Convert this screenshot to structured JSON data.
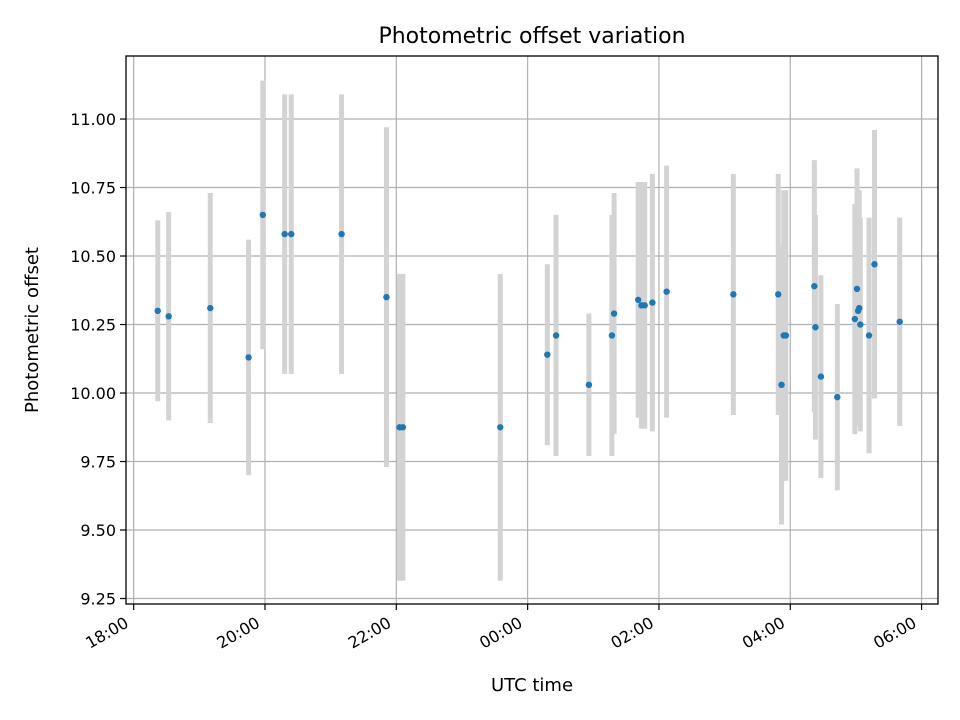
{
  "chart_data": {
    "type": "scatter",
    "title": "Photometric offset variation",
    "xlabel": "UTC time",
    "ylabel": "Photometric offset",
    "grid": true,
    "xlim": [
      "2000-01-01T17:53",
      "2000-01-02T06:15"
    ],
    "ylim": [
      9.23,
      11.23
    ],
    "x_ticks": [
      {
        "t": "2000-01-01T18:00",
        "label": "18:00"
      },
      {
        "t": "2000-01-01T20:00",
        "label": "20:00"
      },
      {
        "t": "2000-01-01T22:00",
        "label": "22:00"
      },
      {
        "t": "2000-01-02T00:00",
        "label": "00:00"
      },
      {
        "t": "2000-01-02T02:00",
        "label": "02:00"
      },
      {
        "t": "2000-01-02T04:00",
        "label": "04:00"
      },
      {
        "t": "2000-01-02T06:00",
        "label": "06:00"
      }
    ],
    "y_ticks": [
      {
        "v": 9.25,
        "label": "9.25"
      },
      {
        "v": 9.5,
        "label": "9.50"
      },
      {
        "v": 9.75,
        "label": "9.75"
      },
      {
        "v": 10.0,
        "label": "10.00"
      },
      {
        "v": 10.25,
        "label": "10.25"
      },
      {
        "v": 10.5,
        "label": "10.50"
      },
      {
        "v": 10.75,
        "label": "10.75"
      },
      {
        "v": 11.0,
        "label": "11.00"
      }
    ],
    "colors": {
      "point": "#1f77b4",
      "errorbar": "#d3d3d3",
      "grid": "#b0b0b0"
    },
    "points": [
      {
        "t": "2000-01-01T18:22",
        "y": 10.3,
        "err": 0.33
      },
      {
        "t": "2000-01-01T18:32",
        "y": 10.28,
        "err": 0.38
      },
      {
        "t": "2000-01-01T19:10",
        "y": 10.31,
        "err": 0.42
      },
      {
        "t": "2000-01-01T19:45",
        "y": 10.13,
        "err": 0.43
      },
      {
        "t": "2000-01-01T19:58",
        "y": 10.65,
        "err": 0.49
      },
      {
        "t": "2000-01-01T20:18",
        "y": 10.58,
        "err": 0.51
      },
      {
        "t": "2000-01-01T20:24",
        "y": 10.58,
        "err": 0.51
      },
      {
        "t": "2000-01-01T21:10",
        "y": 10.58,
        "err": 0.51
      },
      {
        "t": "2000-01-01T21:51",
        "y": 10.35,
        "err": 0.62
      },
      {
        "t": "2000-01-01T22:03",
        "y": 9.875,
        "err": 0.56
      },
      {
        "t": "2000-01-01T22:06",
        "y": 9.875,
        "err": 0.56
      },
      {
        "t": "2000-01-01T23:35",
        "y": 9.875,
        "err": 0.56
      },
      {
        "t": "2000-01-02T00:18",
        "y": 10.14,
        "err": 0.33
      },
      {
        "t": "2000-01-02T00:26",
        "y": 10.21,
        "err": 0.44
      },
      {
        "t": "2000-01-02T00:56",
        "y": 10.03,
        "err": 0.26
      },
      {
        "t": "2000-01-02T01:17",
        "y": 10.21,
        "err": 0.44
      },
      {
        "t": "2000-01-02T01:19",
        "y": 10.29,
        "err": 0.44
      },
      {
        "t": "2000-01-02T01:41",
        "y": 10.34,
        "err": 0.43
      },
      {
        "t": "2000-01-02T01:44",
        "y": 10.32,
        "err": 0.45
      },
      {
        "t": "2000-01-02T01:47",
        "y": 10.32,
        "err": 0.45
      },
      {
        "t": "2000-01-02T01:54",
        "y": 10.33,
        "err": 0.47
      },
      {
        "t": "2000-01-02T02:07",
        "y": 10.37,
        "err": 0.46
      },
      {
        "t": "2000-01-02T03:08",
        "y": 10.36,
        "err": 0.44
      },
      {
        "t": "2000-01-02T03:49",
        "y": 10.36,
        "err": 0.44
      },
      {
        "t": "2000-01-02T03:52",
        "y": 10.03,
        "err": 0.51
      },
      {
        "t": "2000-01-02T03:54",
        "y": 10.21,
        "err": 0.53
      },
      {
        "t": "2000-01-02T03:56",
        "y": 10.21,
        "err": 0.53
      },
      {
        "t": "2000-01-02T04:22",
        "y": 10.39,
        "err": 0.46
      },
      {
        "t": "2000-01-02T04:23",
        "y": 10.24,
        "err": 0.41
      },
      {
        "t": "2000-01-02T04:28",
        "y": 10.06,
        "err": 0.37
      },
      {
        "t": "2000-01-02T04:43",
        "y": 9.985,
        "err": 0.34
      },
      {
        "t": "2000-01-02T04:59",
        "y": 10.27,
        "err": 0.42
      },
      {
        "t": "2000-01-02T05:01",
        "y": 10.38,
        "err": 0.44
      },
      {
        "t": "2000-01-02T05:02",
        "y": 10.3,
        "err": 0.41
      },
      {
        "t": "2000-01-02T05:03",
        "y": 10.31,
        "err": 0.43
      },
      {
        "t": "2000-01-02T05:04",
        "y": 10.25,
        "err": 0.39
      },
      {
        "t": "2000-01-02T05:12",
        "y": 10.21,
        "err": 0.43
      },
      {
        "t": "2000-01-02T05:17",
        "y": 10.47,
        "err": 0.49
      },
      {
        "t": "2000-01-02T05:40",
        "y": 10.26,
        "err": 0.38
      }
    ]
  }
}
